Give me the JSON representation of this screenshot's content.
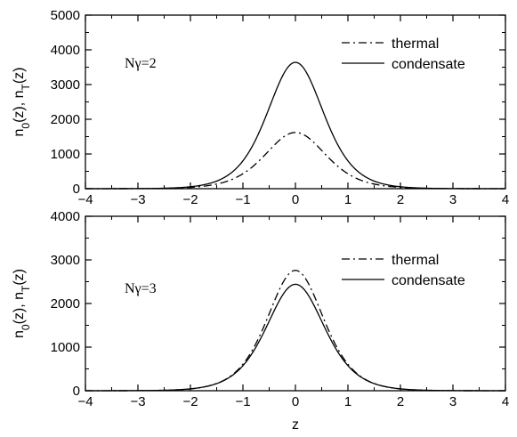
{
  "chart_data": [
    {
      "type": "line",
      "annotation": "Nγ=2",
      "xlabel": "",
      "ylabel": "n0(z), nT(z)",
      "xlim": [
        -4,
        4
      ],
      "ylim": [
        0,
        5000
      ],
      "xticks": [
        -4,
        -3,
        -2,
        -1,
        0,
        1,
        2,
        3,
        4
      ],
      "yticks": [
        0,
        1000,
        2000,
        3000,
        4000,
        5000
      ],
      "legend_position": "top-right",
      "grid": false,
      "series": [
        {
          "name": "thermal",
          "style": "dash-dot",
          "peak": 1620,
          "width": 0.78
        },
        {
          "name": "condensate",
          "style": "solid",
          "peak": 3640,
          "width": 0.72
        }
      ]
    },
    {
      "type": "line",
      "annotation": "Nγ=3",
      "xlabel": "z",
      "ylabel": "n0(z), nT(z)",
      "xlim": [
        -4,
        4
      ],
      "ylim": [
        0,
        4000
      ],
      "xticks": [
        -4,
        -3,
        -2,
        -1,
        0,
        1,
        2,
        3,
        4
      ],
      "yticks": [
        0,
        1000,
        2000,
        3000,
        4000
      ],
      "legend_position": "top-right",
      "grid": false,
      "series": [
        {
          "name": "thermal",
          "style": "dash-dot",
          "peak": 2760,
          "width": 0.72
        },
        {
          "name": "condensate",
          "style": "solid",
          "peak": 2440,
          "width": 0.74
        }
      ]
    }
  ]
}
